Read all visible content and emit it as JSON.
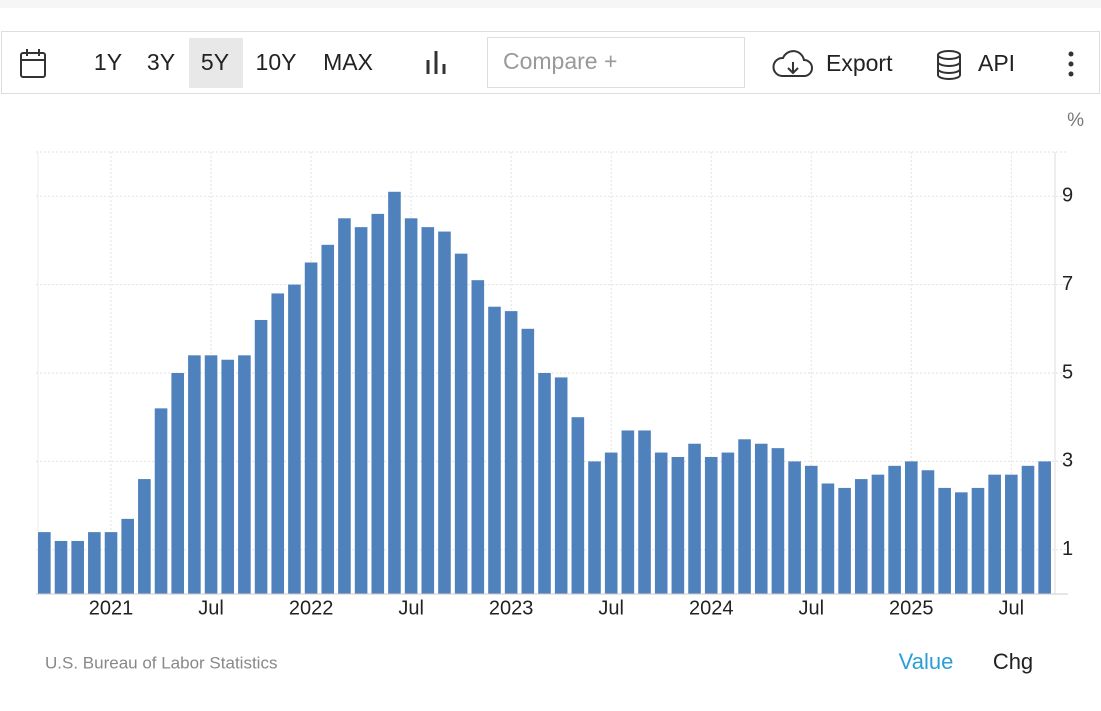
{
  "toolbar": {
    "ranges": [
      "1Y",
      "3Y",
      "5Y",
      "10Y",
      "MAX"
    ],
    "selected": "5Y",
    "compare": "Compare +",
    "export": "Export",
    "api": "API"
  },
  "source": "U.S. Bureau of Labor Statistics",
  "footer_tabs": {
    "value": "Value",
    "chg": "Chg"
  },
  "chart_data": {
    "type": "bar",
    "unit": "%",
    "color": "#4f81bd",
    "grid": true,
    "categories": [
      null,
      null,
      null,
      null,
      "2021",
      null,
      null,
      null,
      null,
      null,
      "Jul",
      null,
      null,
      null,
      null,
      null,
      "2022",
      null,
      null,
      null,
      null,
      null,
      "Jul",
      null,
      null,
      null,
      null,
      null,
      "2023",
      null,
      null,
      null,
      null,
      null,
      "Jul",
      null,
      null,
      null,
      null,
      null,
      "2024",
      null,
      null,
      null,
      null,
      null,
      "Jul",
      null,
      null,
      null,
      null,
      null,
      "2025",
      null,
      null,
      null,
      null,
      null,
      "Jul",
      null,
      null
    ],
    "values": [
      1.4,
      1.2,
      1.2,
      1.4,
      1.4,
      1.7,
      2.6,
      4.2,
      5.0,
      5.4,
      5.4,
      5.3,
      5.4,
      6.2,
      6.8,
      7.0,
      7.5,
      7.9,
      8.5,
      8.3,
      8.6,
      9.1,
      8.5,
      8.3,
      8.2,
      7.7,
      7.1,
      6.5,
      6.4,
      6.0,
      5.0,
      4.9,
      4.0,
      3.0,
      3.2,
      3.7,
      3.7,
      3.2,
      3.1,
      3.4,
      3.1,
      3.2,
      3.5,
      3.4,
      3.3,
      3.0,
      2.9,
      2.5,
      2.4,
      2.6,
      2.7,
      2.9,
      3.0,
      2.8,
      2.4,
      2.3,
      2.4,
      2.7,
      2.7,
      2.9,
      3.0
    ],
    "ylim": [
      0,
      10
    ],
    "yticks": [
      1,
      3,
      5,
      7,
      9
    ]
  }
}
